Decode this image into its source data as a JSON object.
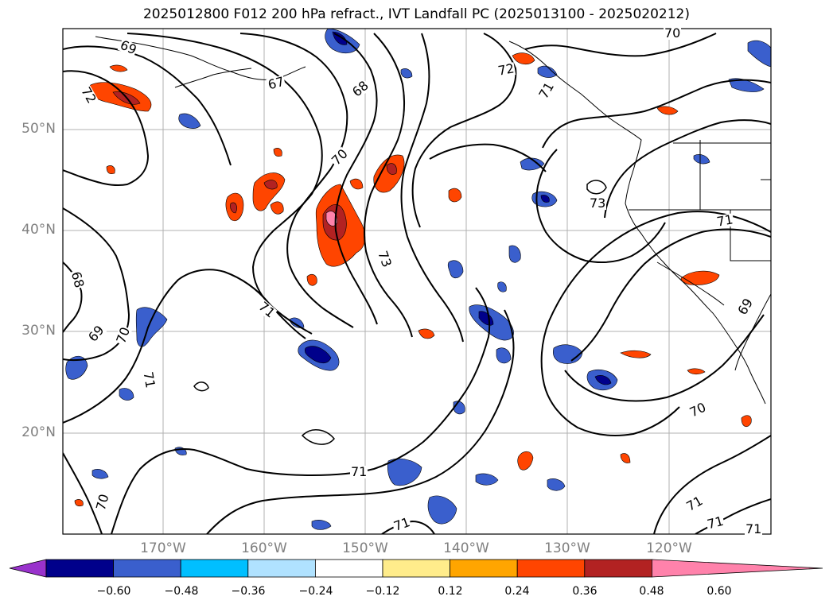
{
  "title": "2025012800 F012 200 hPa refract., IVT Landfall PC (2025013100 - 2025020212)",
  "latitude_labels": [
    "50°N",
    "40°N",
    "30°N",
    "20°N"
  ],
  "longitude_labels": [
    "170°W",
    "160°W",
    "150°W",
    "140°W",
    "130°W",
    "120°W"
  ],
  "contour_labels": [
    "69",
    "72",
    "67",
    "68",
    "70",
    "72",
    "71",
    "70",
    "73",
    "71",
    "68",
    "69",
    "70",
    "71",
    "73",
    "71",
    "69",
    "70",
    "71",
    "71",
    "70",
    "71",
    "71",
    "71"
  ],
  "colorbar": {
    "ticks": [
      "−0.60",
      "−0.48",
      "−0.36",
      "−0.24",
      "−0.12",
      "0.12",
      "0.24",
      "0.36",
      "0.48",
      "0.60"
    ],
    "colors": [
      "#9932cc",
      "#00008b",
      "#3a5fcd",
      "#00bfff",
      "#b0e2ff",
      "#ffffff",
      "#ffec8b",
      "#ffa500",
      "#ff4500",
      "#b22222",
      "#ff82ab"
    ]
  }
}
